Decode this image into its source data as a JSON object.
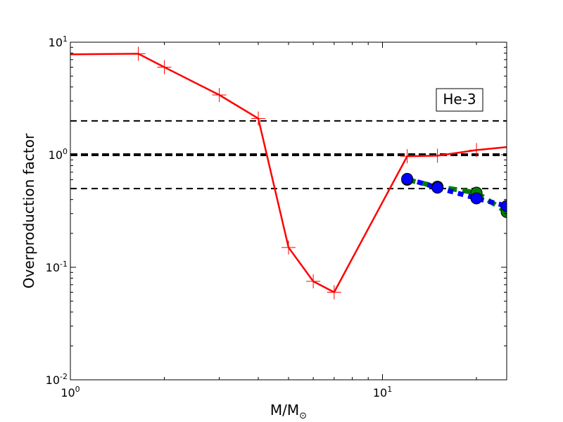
{
  "chart_data": {
    "type": "line",
    "title": "",
    "xlabel": "M/M",
    "xlabel_sub": "⊙",
    "ylabel": "Overproduction factor",
    "xscale": "log",
    "yscale": "log",
    "xlim": [
      1,
      25
    ],
    "ylim": [
      0.01,
      10
    ],
    "grid": false,
    "x_ticks": [
      {
        "value": 1,
        "base": "10",
        "exp": "0"
      },
      {
        "value": 10,
        "base": "10",
        "exp": "1"
      }
    ],
    "y_ticks": [
      {
        "value": 0.01,
        "base": "10",
        "exp": "-2"
      },
      {
        "value": 0.1,
        "base": "10",
        "exp": "-1"
      },
      {
        "value": 1,
        "base": "10",
        "exp": "0"
      },
      {
        "value": 10,
        "base": "10",
        "exp": "1"
      }
    ],
    "annotation": "He-3",
    "reference_lines": [
      {
        "y": 2.0,
        "style": "dashed",
        "color": "#000000",
        "width": 2
      },
      {
        "y": 1.0,
        "style": "dashed",
        "color": "#000000",
        "width": 4
      },
      {
        "y": 0.5,
        "style": "dashed",
        "color": "#000000",
        "width": 2
      }
    ],
    "series": [
      {
        "style": "solid",
        "color": "#ff0000",
        "marker": "plus",
        "x": [
          1.0,
          1.65,
          2.0,
          3.0,
          4.0,
          5.0,
          6.0,
          7.0,
          12.0,
          15.0,
          20.0,
          25.0
        ],
        "y": [
          7.8,
          7.9,
          6.0,
          3.4,
          2.1,
          0.15,
          0.075,
          0.06,
          0.97,
          0.98,
          1.1,
          1.17
        ],
        "marker_x": [
          1.65,
          2.0,
          3.0,
          4.0,
          5.0,
          6.0,
          7.0,
          12.0,
          15.0,
          20.0
        ],
        "marker_y": [
          7.9,
          6.0,
          3.4,
          2.1,
          0.15,
          0.075,
          0.06,
          0.97,
          0.98,
          1.1
        ]
      },
      {
        "style": "dashed",
        "color": "#008000",
        "marker": "circle",
        "x": [
          12.0,
          15.0,
          20.0,
          25.0
        ],
        "y": [
          0.6,
          0.52,
          0.46,
          0.31
        ]
      },
      {
        "style": "dotted",
        "color": "#0000ff",
        "marker": "circle",
        "x": [
          12.0,
          15.0,
          20.0,
          25.0
        ],
        "y": [
          0.61,
          0.51,
          0.41,
          0.35
        ]
      }
    ]
  }
}
